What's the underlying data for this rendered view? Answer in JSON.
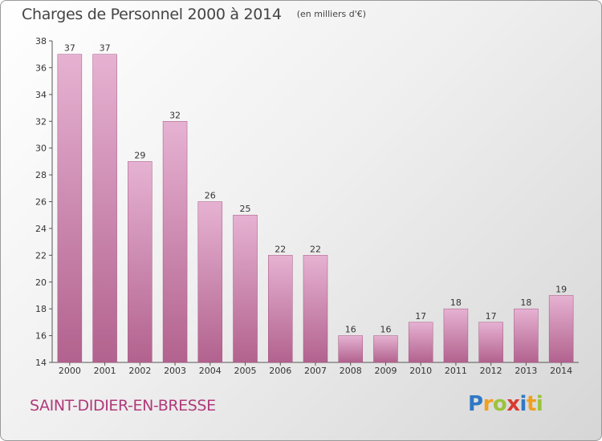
{
  "title": "Charges de Personnel 2000 à 2014",
  "subtitle": "(en milliers d'€)",
  "town": "SAINT-DIDIER-EN-BRESSE",
  "logo": {
    "letters": [
      "P",
      "r",
      "o",
      "x",
      "i",
      "t",
      "i"
    ],
    "colors": [
      "#2f78c6",
      "#f0a01e",
      "#9bc33b",
      "#d93a2f",
      "#2f78c6",
      "#f0a01e",
      "#9bc33b"
    ]
  },
  "colors": {
    "bar_top": "#e6b2d2",
    "bar_bottom": "#b2628e",
    "town": "#b03a7a"
  },
  "chart_data": {
    "type": "bar",
    "title": "Charges de Personnel 2000 à 2014",
    "subtitle": "(en milliers d'€)",
    "xlabel": "",
    "ylabel": "",
    "categories": [
      "2000",
      "2001",
      "2002",
      "2003",
      "2004",
      "2005",
      "2006",
      "2007",
      "2008",
      "2009",
      "2010",
      "2011",
      "2012",
      "2013",
      "2014"
    ],
    "values": [
      37,
      37,
      29,
      32,
      26,
      25,
      22,
      22,
      16,
      16,
      17,
      18,
      17,
      18,
      19
    ],
    "ylim": [
      14,
      38
    ],
    "yticks": [
      14,
      16,
      18,
      20,
      22,
      24,
      26,
      28,
      30,
      32,
      34,
      36,
      38
    ],
    "grid": false,
    "legend": "none"
  }
}
